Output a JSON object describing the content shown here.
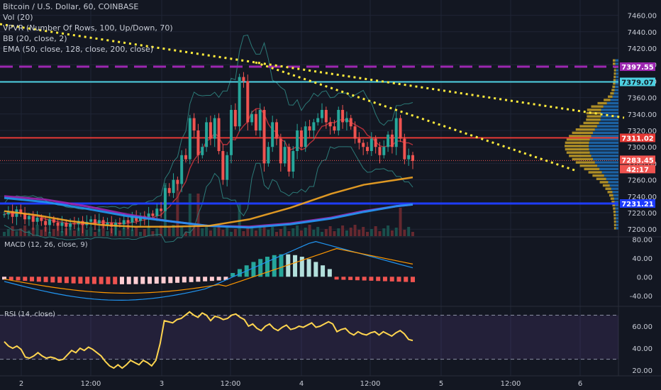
{
  "legend": {
    "symbol": "Bitcoin / U.S. Dollar, 60, COINBASE",
    "vol": "Vol (20)",
    "vpvr": "VPVR (Number Of Rows, 100, Up/Down, 70)",
    "bb": "BB (20, close, 2)",
    "ema": "EMA (50, close, 128, close, 200, close)"
  },
  "price_axis": {
    "ticks": [
      "7460.00",
      "7440.00",
      "7420.00",
      "7400.00",
      "7380.00",
      "7360.00",
      "7340.00",
      "7320.00",
      "7300.00",
      "7280.00",
      "7260.00",
      "7240.00",
      "7220.00",
      "7200.00"
    ]
  },
  "price_tags": [
    {
      "label": "7397.55",
      "color": "#9c27b0",
      "text_color": "#ffffff"
    },
    {
      "label": "7379.07",
      "color": "#4dd0e1",
      "text_color": "#131722"
    },
    {
      "label": "7311.02",
      "color": "#e53935",
      "text_color": "#ffffff"
    },
    {
      "label": "7283.45",
      "color": "#ef5350",
      "text_color": "#ffffff"
    },
    {
      "label": "42:17",
      "color": "#ef5350",
      "text_color": "#ffffff"
    },
    {
      "label": "7231.21",
      "color": "#1e3cff",
      "text_color": "#ffffff"
    }
  ],
  "macd": {
    "title": "MACD (12, 26, close, 9)",
    "ticks": [
      "80.00",
      "40.00",
      "0.00",
      "-40.00"
    ]
  },
  "rsi": {
    "title": "RSI (14, close)",
    "ticks": [
      "60.00",
      "40.00",
      "20.00"
    ]
  },
  "time_axis": {
    "labels": [
      "2",
      "12:00",
      "3",
      "12:00",
      "4",
      "12:00",
      "5",
      "12:00",
      "6"
    ]
  },
  "colors": {
    "background": "#131722",
    "up": "#26a69a",
    "down": "#ef5350",
    "ema_orange": "#f5a623",
    "ema_purple": "#9c27b0",
    "ema_blue": "#2196f3",
    "trendline": "#ffeb3b",
    "rsi_line": "#ffd54f"
  },
  "chart_data": [
    {
      "type": "candlestick",
      "panel": "price",
      "ylim": [
        7195,
        7470
      ],
      "horizontal_levels": [
        7397.55,
        7379.07,
        7311.02,
        7231.21
      ],
      "last_price": 7283.45,
      "ema": [
        {
          "values_sparse": [
            [
              0,
              7240
            ],
            [
              10,
              7236
            ],
            [
              20,
              7228
            ],
            [
              30,
              7218
            ],
            [
              40,
              7210
            ],
            [
              50,
              7204
            ],
            [
              60,
              7203
            ],
            [
              70,
              7207
            ],
            [
              80,
              7214
            ],
            [
              88,
              7222
            ],
            [
              96,
              7228
            ],
            [
              100,
              7230
            ]
          ]
        },
        {
          "values_sparse": [
            [
              0,
              7238
            ],
            [
              10,
              7233
            ],
            [
              20,
              7225
            ],
            [
              30,
              7216
            ],
            [
              40,
              7210
            ],
            [
              50,
              7204
            ],
            [
              60,
              7202
            ],
            [
              70,
              7206
            ],
            [
              80,
              7213
            ],
            [
              88,
              7221
            ],
            [
              96,
              7228
            ],
            [
              100,
              7230
            ]
          ]
        },
        {
          "values_sparse": [
            [
              0,
              7222
            ],
            [
              8,
              7217
            ],
            [
              16,
              7210
            ],
            [
              24,
              7205
            ],
            [
              32,
              7203
            ],
            [
              40,
              7203
            ],
            [
              50,
              7204
            ],
            [
              60,
              7212
            ],
            [
              70,
              7226
            ],
            [
              80,
              7243
            ],
            [
              88,
              7254
            ],
            [
              96,
              7260
            ],
            [
              100,
              7263
            ]
          ]
        }
      ],
      "candles": [
        7218,
        7222,
        7215,
        7224,
        7219,
        7212,
        7216,
        7209,
        7214,
        7210,
        7205,
        7212,
        7208,
        7204,
        7208,
        7203,
        7207,
        7206,
        7210,
        7205,
        7209,
        7212,
        7207,
        7211,
        7205,
        7208,
        7203,
        7208,
        7206,
        7211,
        7208,
        7215,
        7210,
        7216,
        7213,
        7219,
        7216,
        7225,
        7222,
        7250,
        7244,
        7260,
        7255,
        7290,
        7285,
        7335,
        7320,
        7290,
        7300,
        7330,
        7310,
        7335,
        7295,
        7260,
        7290,
        7345,
        7325,
        7385,
        7380,
        7330,
        7340,
        7320,
        7345,
        7280,
        7300,
        7330,
        7310,
        7280,
        7300,
        7270,
        7295,
        7320,
        7300,
        7325,
        7320,
        7330,
        7335,
        7345,
        7330,
        7325,
        7320,
        7345,
        7330,
        7335,
        7325,
        7310,
        7305,
        7300,
        7295,
        7310,
        7300,
        7290,
        7300,
        7315,
        7300,
        7335,
        7310,
        7285,
        7290,
        7283
      ]
    },
    {
      "type": "bar",
      "panel": "macd_histogram",
      "ylim": [
        -60,
        85
      ]
    },
    {
      "type": "line",
      "panel": "rsi",
      "ylim": [
        15,
        78
      ],
      "values": [
        46,
        42,
        40,
        42,
        39,
        32,
        31,
        33,
        36,
        33,
        31,
        32,
        31,
        29,
        30,
        34,
        38,
        36,
        40,
        38,
        41,
        39,
        36,
        33,
        28,
        24,
        22,
        25,
        22,
        25,
        29,
        27,
        25,
        29,
        27,
        24,
        29,
        44,
        65,
        64,
        63,
        66,
        67,
        70,
        73,
        70,
        68,
        72,
        70,
        65,
        69,
        68,
        66,
        67,
        70,
        71,
        68,
        66,
        60,
        62,
        58,
        56,
        60,
        62,
        58,
        56,
        59,
        61,
        57,
        58,
        60,
        59,
        61,
        63,
        59,
        60,
        62,
        64,
        62,
        55,
        57,
        58,
        54,
        52,
        55,
        53,
        52,
        54,
        55,
        52,
        55,
        53,
        51,
        54,
        56,
        53,
        48,
        47
      ]
    }
  ]
}
